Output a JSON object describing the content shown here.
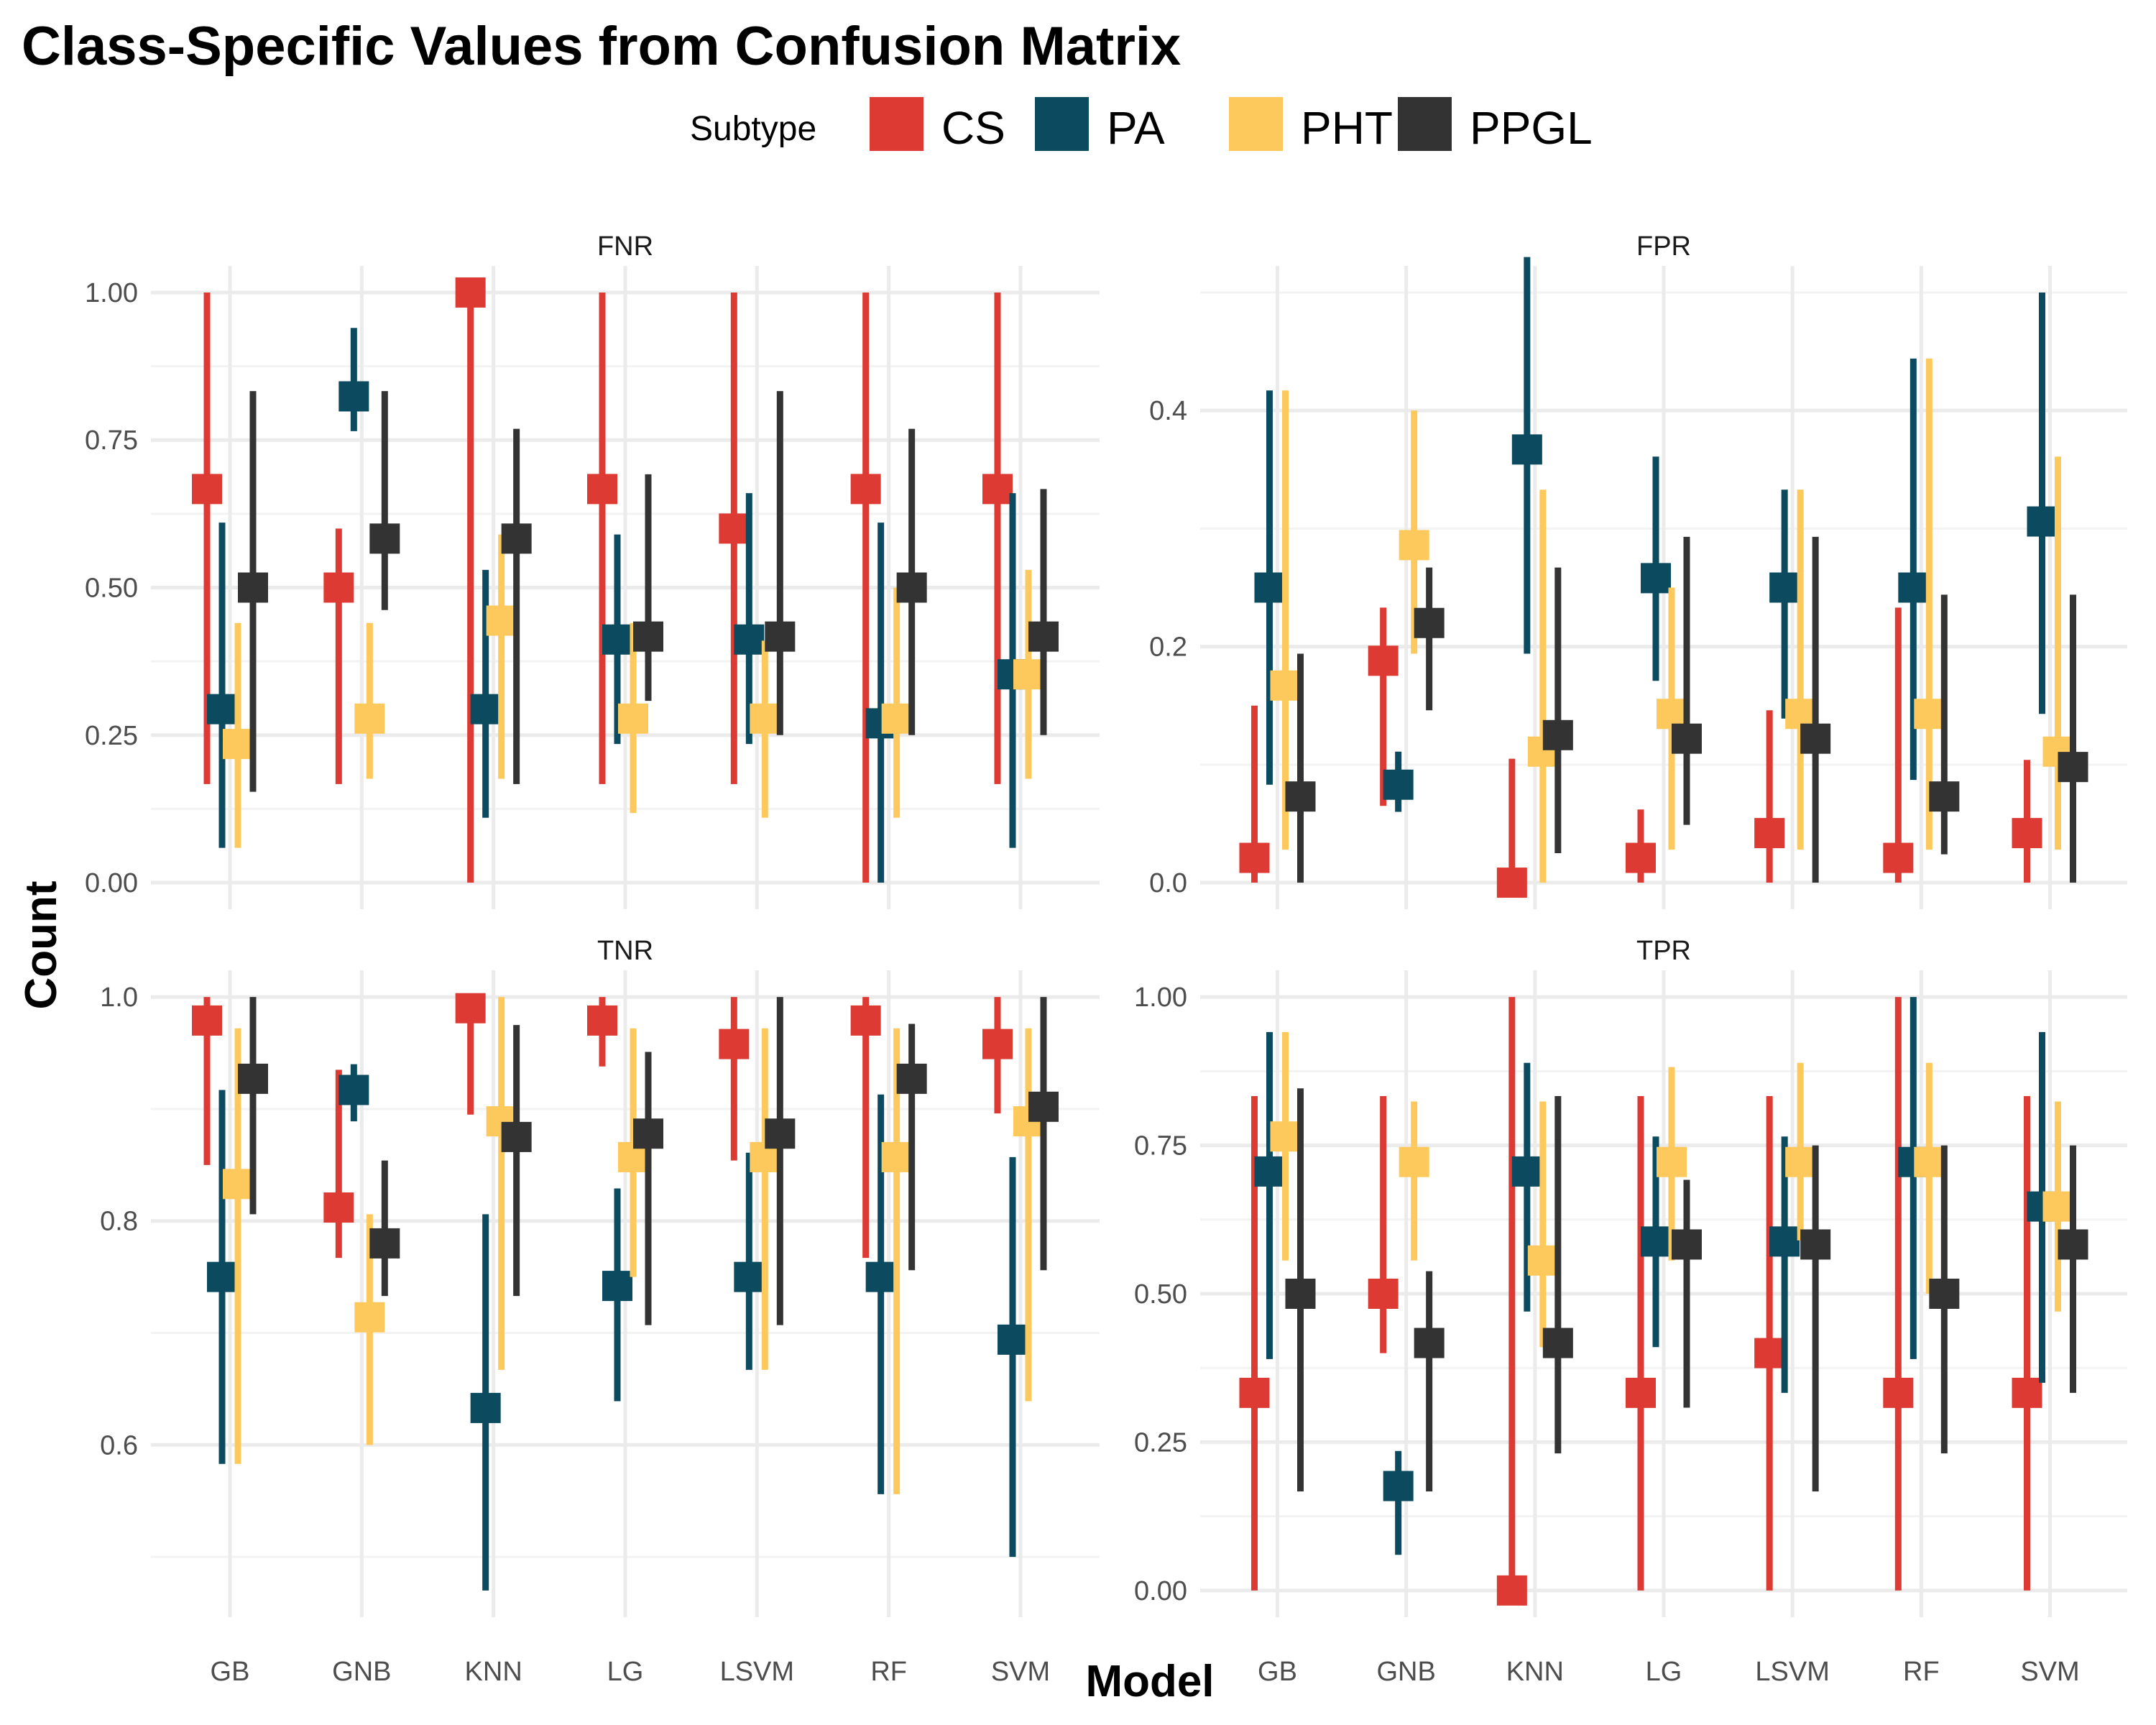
{
  "chart_data": {
    "type": "errorbar-point",
    "title": "Class-Specific Values from Confusion Matrix",
    "xlabel": "Model",
    "ylabel": "Count",
    "legend": {
      "title": "Subtype",
      "position": "top"
    },
    "categories": [
      "GB",
      "GNB",
      "KNN",
      "LG",
      "LSVM",
      "RF",
      "SVM"
    ],
    "series": [
      {
        "name": "CS",
        "color": "#dc3a32"
      },
      {
        "name": "PA",
        "color": "#0b4a5f"
      },
      {
        "name": "PHT",
        "color": "#fec95c"
      },
      {
        "name": "PPGL",
        "color": "#333333"
      }
    ],
    "panels": [
      {
        "label": "FNR",
        "ylim": [
          0,
          1.0
        ],
        "yticks": [
          0.0,
          0.25,
          0.5,
          0.75,
          1.0
        ],
        "ytick_labels": [
          "0.00",
          "0.25",
          "0.50",
          "0.75",
          "1.00"
        ],
        "data": {
          "CS": [
            [
              0.667,
              0.167,
              1.0
            ],
            [
              0.5,
              0.167,
              0.6
            ],
            [
              1.0,
              0.0,
              1.0
            ],
            [
              0.667,
              0.167,
              1.0
            ],
            [
              0.6,
              0.167,
              1.0
            ],
            [
              0.667,
              0.0,
              1.0
            ],
            [
              0.667,
              0.167,
              1.0
            ]
          ],
          "PA": [
            [
              0.294,
              0.059,
              0.61
            ],
            [
              0.824,
              0.765,
              0.94
            ],
            [
              0.294,
              0.11,
              0.53
            ],
            [
              0.412,
              0.235,
              0.59
            ],
            [
              0.412,
              0.235,
              0.66
            ],
            [
              0.27,
              0.0,
              0.61
            ],
            [
              0.353,
              0.059,
              0.66
            ]
          ],
          "PHT": [
            [
              0.235,
              0.059,
              0.44
            ],
            [
              0.278,
              0.176,
              0.44
            ],
            [
              0.444,
              0.176,
              0.59
            ],
            [
              0.278,
              0.118,
              0.44
            ],
            [
              0.278,
              0.11,
              0.41
            ],
            [
              0.278,
              0.11,
              0.5
            ],
            [
              0.353,
              0.176,
              0.53
            ]
          ],
          "PPGL": [
            [
              0.5,
              0.154,
              0.833
            ],
            [
              0.583,
              0.462,
              0.833
            ],
            [
              0.583,
              0.167,
              0.769
            ],
            [
              0.417,
              0.308,
              0.692
            ],
            [
              0.417,
              0.25,
              0.833
            ],
            [
              0.5,
              0.25,
              0.769
            ],
            [
              0.417,
              0.25,
              0.667
            ]
          ]
        }
      },
      {
        "label": "FPR",
        "ylim": [
          0,
          0.5
        ],
        "yticks": [
          0.0,
          0.2,
          0.4
        ],
        "ytick_labels": [
          "0.0",
          "0.2",
          "0.4"
        ],
        "data": {
          "CS": [
            [
              0.021,
              0.0,
              0.15
            ],
            [
              0.188,
              0.065,
              0.233
            ],
            [
              0.0,
              0.0,
              0.105
            ],
            [
              0.021,
              0.0,
              0.062
            ],
            [
              0.042,
              0.0,
              0.146
            ],
            [
              0.021,
              0.0,
              0.233
            ],
            [
              0.042,
              0.0,
              0.104
            ]
          ],
          "PA": [
            [
              0.25,
              0.083,
              0.417
            ],
            [
              0.083,
              0.06,
              0.111
            ],
            [
              0.367,
              0.194,
              0.53
            ],
            [
              0.258,
              0.171,
              0.361
            ],
            [
              0.25,
              0.139,
              0.333
            ],
            [
              0.25,
              0.087,
              0.444
            ],
            [
              0.306,
              0.143,
              0.5
            ]
          ],
          "PHT": [
            [
              0.167,
              0.028,
              0.417
            ],
            [
              0.286,
              0.194,
              0.4
            ],
            [
              0.111,
              0.0,
              0.333
            ],
            [
              0.143,
              0.028,
              0.25
            ],
            [
              0.143,
              0.028,
              0.333
            ],
            [
              0.143,
              0.028,
              0.444
            ],
            [
              0.111,
              0.028,
              0.361
            ]
          ],
          "PPGL": [
            [
              0.073,
              0.0,
              0.194
            ],
            [
              0.22,
              0.146,
              0.267
            ],
            [
              0.125,
              0.025,
              0.267
            ],
            [
              0.122,
              0.049,
              0.293
            ],
            [
              0.122,
              0.0,
              0.293
            ],
            [
              0.073,
              0.024,
              0.244
            ],
            [
              0.098,
              0.0,
              0.244
            ]
          ]
        }
      },
      {
        "label": "TNR",
        "ylim": [
          0.47,
          1.0
        ],
        "yticks": [
          0.6,
          0.8,
          1.0
        ],
        "ytick_labels": [
          "0.6",
          "0.8",
          "1.0"
        ],
        "data": {
          "CS": [
            [
              0.979,
              0.85,
              1.0
            ],
            [
              0.812,
              0.767,
              0.935
            ],
            [
              0.99,
              0.895,
              1.0
            ],
            [
              0.979,
              0.938,
              1.0
            ],
            [
              0.958,
              0.854,
              1.0
            ],
            [
              0.979,
              0.767,
              1.0
            ],
            [
              0.958,
              0.896,
              1.0
            ]
          ],
          "PA": [
            [
              0.75,
              0.583,
              0.917
            ],
            [
              0.917,
              0.889,
              0.94
            ],
            [
              0.633,
              0.47,
              0.806
            ],
            [
              0.742,
              0.639,
              0.829
            ],
            [
              0.75,
              0.667,
              0.861
            ],
            [
              0.75,
              0.556,
              0.913
            ],
            [
              0.694,
              0.5,
              0.857
            ]
          ],
          "PHT": [
            [
              0.833,
              0.583,
              0.972
            ],
            [
              0.714,
              0.6,
              0.806
            ],
            [
              0.889,
              0.667,
              1.0
            ],
            [
              0.857,
              0.75,
              0.972
            ],
            [
              0.857,
              0.667,
              0.972
            ],
            [
              0.857,
              0.556,
              0.972
            ],
            [
              0.889,
              0.639,
              0.972
            ]
          ],
          "PPGL": [
            [
              0.927,
              0.806,
              1.0
            ],
            [
              0.78,
              0.733,
              0.854
            ],
            [
              0.875,
              0.733,
              0.975
            ],
            [
              0.878,
              0.707,
              0.951
            ],
            [
              0.878,
              0.707,
              1.0
            ],
            [
              0.927,
              0.756,
              0.976
            ],
            [
              0.902,
              0.756,
              1.0
            ]
          ]
        }
      },
      {
        "label": "TPR",
        "ylim": [
          0,
          1.0
        ],
        "yticks": [
          0.0,
          0.25,
          0.5,
          0.75,
          1.0
        ],
        "ytick_labels": [
          "0.00",
          "0.25",
          "0.50",
          "0.75",
          "1.00"
        ],
        "data": {
          "CS": [
            [
              0.333,
              0.0,
              0.833
            ],
            [
              0.5,
              0.4,
              0.833
            ],
            [
              0.0,
              0.0,
              1.0
            ],
            [
              0.333,
              0.0,
              0.833
            ],
            [
              0.4,
              0.0,
              0.833
            ],
            [
              0.333,
              0.0,
              1.0
            ],
            [
              0.333,
              0.0,
              0.833
            ]
          ],
          "PA": [
            [
              0.706,
              0.39,
              0.941
            ],
            [
              0.176,
              0.06,
              0.235
            ],
            [
              0.706,
              0.47,
              0.889
            ],
            [
              0.588,
              0.41,
              0.765
            ],
            [
              0.588,
              0.333,
              0.765
            ],
            [
              0.722,
              0.39,
              1.0
            ],
            [
              0.647,
              0.35,
              0.941
            ]
          ],
          "PHT": [
            [
              0.765,
              0.556,
              0.941
            ],
            [
              0.722,
              0.556,
              0.824
            ],
            [
              0.556,
              0.41,
              0.824
            ],
            [
              0.722,
              0.556,
              0.882
            ],
            [
              0.722,
              0.59,
              0.889
            ],
            [
              0.722,
              0.5,
              0.889
            ],
            [
              0.647,
              0.47,
              0.824
            ]
          ],
          "PPGL": [
            [
              0.5,
              0.167,
              0.846
            ],
            [
              0.417,
              0.167,
              0.538
            ],
            [
              0.417,
              0.231,
              0.833
            ],
            [
              0.583,
              0.308,
              0.692
            ],
            [
              0.583,
              0.167,
              0.75
            ],
            [
              0.5,
              0.231,
              0.75
            ],
            [
              0.583,
              0.333,
              0.75
            ]
          ]
        }
      }
    ]
  }
}
